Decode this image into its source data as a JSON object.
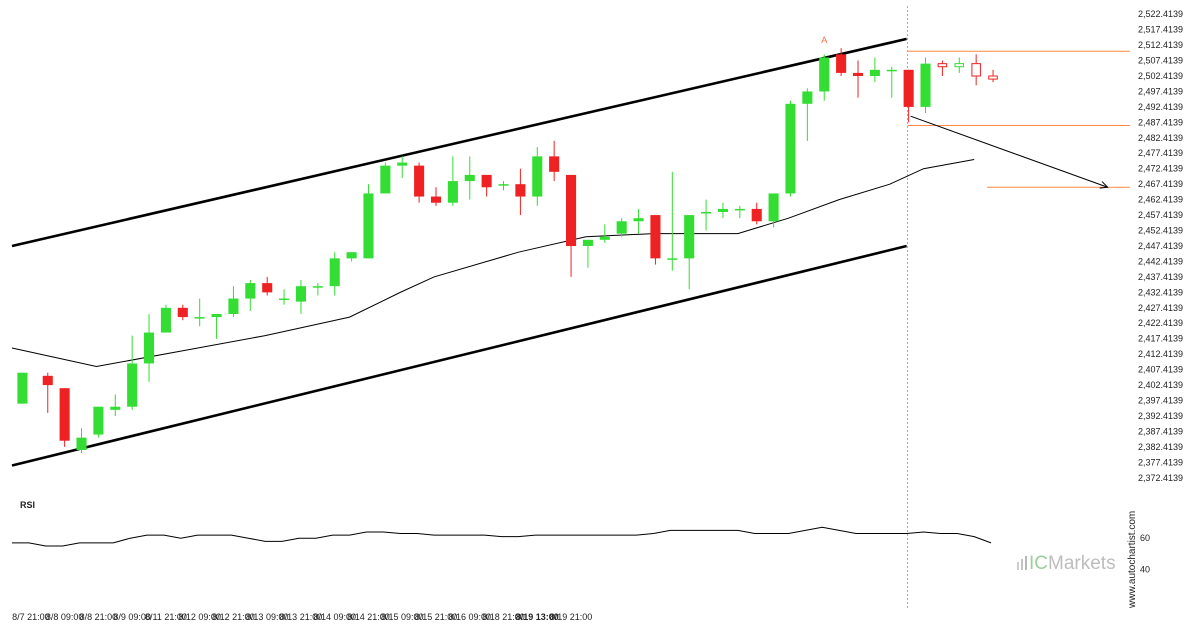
{
  "chart_data": [
    {
      "type": "candlestick",
      "y_ticks": [
        "2,522.4139",
        "2,517.4139",
        "2,512.4139",
        "2,507.4139",
        "2,502.4139",
        "2,497.4139",
        "2,492.4139",
        "2,487.4139",
        "2,482.4139",
        "2,477.4139",
        "2,472.4139",
        "2,467.4139",
        "2,462.4139",
        "2,457.4139",
        "2,452.4139",
        "2,447.4139",
        "2,442.4139",
        "2,437.4139",
        "2,432.4139",
        "2,427.4139",
        "2,422.4139",
        "2,417.4139",
        "2,412.4139",
        "2,407.4139",
        "2,402.4139",
        "2,397.4139",
        "2,392.4139",
        "2,387.4139",
        "2,382.4139",
        "2,377.4139",
        "2,372.4139"
      ],
      "ylim": [
        2370.4,
        2524.4
      ],
      "x_ticks": [
        "8/7 21:00",
        "8/8 09:00",
        "8/8 21:00",
        "8/9 09:00",
        "8/11 21:00",
        "8/12 09:00",
        "8/12 21:00",
        "8/13 09:00",
        "8/13 21:00",
        "8/14 09:00",
        "8/14 21:00",
        "8/15 09:00",
        "8/15 21:00",
        "8/16 09:00",
        "8/18 21:00",
        "8/19 13:00",
        "8/19 21:00"
      ],
      "x_tick_index": [
        2,
        6,
        10,
        14,
        18,
        22,
        26,
        30,
        34,
        38,
        42,
        46,
        50,
        54,
        58,
        62,
        66
      ],
      "highlighted_x_tick": "8/19 13:00",
      "candles": [
        {
          "o": 2396.4,
          "h": 2406.4,
          "l": 2396.4,
          "c": 2406.4
        },
        {
          "o": 2405.4,
          "h": 2406.4,
          "l": 2393.4,
          "c": 2402.4
        },
        {
          "o": 2401.4,
          "h": 2401.4,
          "l": 2382.4,
          "c": 2384.4
        },
        {
          "o": 2381.4,
          "h": 2388.4,
          "l": 2380.4,
          "c": 2385.4
        },
        {
          "o": 2386.4,
          "h": 2395.4,
          "l": 2385.4,
          "c": 2395.4
        },
        {
          "o": 2394.4,
          "h": 2399.4,
          "l": 2392.4,
          "c": 2395.4
        },
        {
          "o": 2395.4,
          "h": 2418.4,
          "l": 2394.4,
          "c": 2409.4
        },
        {
          "o": 2409.4,
          "h": 2425.4,
          "l": 2403.4,
          "c": 2419.4
        },
        {
          "o": 2419.4,
          "h": 2428.4,
          "l": 2419.4,
          "c": 2427.4
        },
        {
          "o": 2427.4,
          "h": 2428.4,
          "l": 2423.4,
          "c": 2424.4
        },
        {
          "o": 2424.4,
          "h": 2430.4,
          "l": 2421.4,
          "c": 2424.4
        },
        {
          "o": 2424.4,
          "h": 2425.4,
          "l": 2417.4,
          "c": 2425.4
        },
        {
          "o": 2425.4,
          "h": 2434.4,
          "l": 2424.4,
          "c": 2430.4
        },
        {
          "o": 2430.4,
          "h": 2436.4,
          "l": 2426.4,
          "c": 2435.4
        },
        {
          "o": 2435.4,
          "h": 2437.4,
          "l": 2431.4,
          "c": 2432.4
        },
        {
          "o": 2430.4,
          "h": 2433.4,
          "l": 2428.4,
          "c": 2430.4
        },
        {
          "o": 2429.4,
          "h": 2436.4,
          "l": 2425.4,
          "c": 2434.4
        },
        {
          "o": 2434.4,
          "h": 2435.4,
          "l": 2431.4,
          "c": 2434.4
        },
        {
          "o": 2434.4,
          "h": 2445.4,
          "l": 2431.4,
          "c": 2443.4
        },
        {
          "o": 2443.4,
          "h": 2445.4,
          "l": 2442.4,
          "c": 2445.4
        },
        {
          "o": 2443.4,
          "h": 2467.4,
          "l": 2443.4,
          "c": 2464.4
        },
        {
          "o": 2464.4,
          "h": 2474.4,
          "l": 2464.4,
          "c": 2473.4
        },
        {
          "o": 2473.4,
          "h": 2476.4,
          "l": 2469.4,
          "c": 2474.4
        },
        {
          "o": 2473.4,
          "h": 2474.4,
          "l": 2461.4,
          "c": 2463.4
        },
        {
          "o": 2463.4,
          "h": 2466.4,
          "l": 2460.4,
          "c": 2461.4
        },
        {
          "o": 2461.4,
          "h": 2476.4,
          "l": 2460.4,
          "c": 2468.4
        },
        {
          "o": 2468.4,
          "h": 2476.4,
          "l": 2462.4,
          "c": 2470.4
        },
        {
          "o": 2470.4,
          "h": 2470.4,
          "l": 2463.4,
          "c": 2466.4
        },
        {
          "o": 2467.4,
          "h": 2468.4,
          "l": 2465.4,
          "c": 2467.4
        },
        {
          "o": 2467.4,
          "h": 2472.4,
          "l": 2457.4,
          "c": 2463.4
        },
        {
          "o": 2463.4,
          "h": 2479.4,
          "l": 2460.4,
          "c": 2476.4
        },
        {
          "o": 2476.4,
          "h": 2481.4,
          "l": 2468.4,
          "c": 2471.4
        },
        {
          "o": 2470.4,
          "h": 2470.4,
          "l": 2437.4,
          "c": 2447.4
        },
        {
          "o": 2447.4,
          "h": 2449.4,
          "l": 2440.4,
          "c": 2449.4
        },
        {
          "o": 2449.4,
          "h": 2454.4,
          "l": 2448.4,
          "c": 2450.4
        },
        {
          "o": 2451.4,
          "h": 2456.4,
          "l": 2450.4,
          "c": 2455.4
        },
        {
          "o": 2455.4,
          "h": 2459.4,
          "l": 2451.4,
          "c": 2456.4
        },
        {
          "o": 2457.4,
          "h": 2457.4,
          "l": 2441.4,
          "c": 2443.4
        },
        {
          "o": 2443.4,
          "h": 2471.4,
          "l": 2439.4,
          "c": 2443.4
        },
        {
          "o": 2443.4,
          "h": 2457.4,
          "l": 2433.4,
          "c": 2457.4
        },
        {
          "o": 2458.4,
          "h": 2462.4,
          "l": 2452.4,
          "c": 2458.4
        },
        {
          "o": 2458.4,
          "h": 2461.4,
          "l": 2456.4,
          "c": 2459.4
        },
        {
          "o": 2459.4,
          "h": 2460.4,
          "l": 2456.4,
          "c": 2459.4
        },
        {
          "o": 2459.4,
          "h": 2461.4,
          "l": 2454.4,
          "c": 2455.4
        },
        {
          "o": 2455.4,
          "h": 2464.4,
          "l": 2453.4,
          "c": 2464.4
        },
        {
          "o": 2464.4,
          "h": 2494.4,
          "l": 2463.4,
          "c": 2493.4
        },
        {
          "o": 2493.4,
          "h": 2498.4,
          "l": 2481.4,
          "c": 2497.4
        },
        {
          "o": 2497.4,
          "h": 2509.4,
          "l": 2494.4,
          "c": 2508.4
        },
        {
          "o": 2509.4,
          "h": 2511.4,
          "l": 2502.4,
          "c": 2503.4
        },
        {
          "o": 2503.4,
          "h": 2507.4,
          "l": 2495.4,
          "c": 2502.4
        },
        {
          "o": 2502.4,
          "h": 2508.4,
          "l": 2500.4,
          "c": 2504.4
        },
        {
          "o": 2504.4,
          "h": 2505.4,
          "l": 2495.4,
          "c": 2504.4
        },
        {
          "o": 2504.4,
          "h": 2504.4,
          "l": 2487.4,
          "c": 2492.4
        },
        {
          "o": 2492.4,
          "h": 2508.4,
          "l": 2490.4,
          "c": 2506.4
        },
        {
          "o": 2506.4,
          "h": 2507.4,
          "l": 2502.4,
          "c": 2505.4
        },
        {
          "o": 2505.4,
          "h": 2508.4,
          "l": 2503.4,
          "c": 2506.4
        },
        {
          "o": 2506.4,
          "h": 2509.4,
          "l": 2499.4,
          "c": 2502.4
        },
        {
          "o": 2502.4,
          "h": 2504.4,
          "l": 2500.4,
          "c": 2501.4
        }
      ],
      "candle_x": [
        1,
        4,
        6,
        8,
        10,
        12,
        14,
        16,
        18,
        20,
        22,
        24,
        26,
        28,
        30,
        32,
        34,
        36,
        38,
        40,
        42,
        44,
        46,
        48,
        50,
        52,
        54,
        56,
        58,
        60,
        62,
        64,
        66,
        68,
        70,
        72,
        74,
        76,
        78,
        80,
        82,
        84,
        86,
        88,
        90,
        92,
        94,
        96,
        98,
        100,
        102,
        104,
        106,
        108,
        110,
        112,
        114,
        116
      ],
      "colors": {
        "bull": "#33dd33",
        "bear": "#ee2222",
        "projection_outline": "#33dd33",
        "projection_bear_outline": "#ee2222"
      },
      "projection_from_index": 53,
      "moving_average": [
        [
          0,
          2414.4
        ],
        [
          10,
          2408.4
        ],
        [
          20,
          2413.4
        ],
        [
          30,
          2418.4
        ],
        [
          40,
          2424.4
        ],
        [
          46,
          2432.4
        ],
        [
          50,
          2437.4
        ],
        [
          60,
          2445.4
        ],
        [
          68,
          2450.4
        ],
        [
          76,
          2451.4
        ],
        [
          86,
          2451.4
        ],
        [
          92,
          2456.4
        ],
        [
          98,
          2462.4
        ],
        [
          104,
          2467.4
        ],
        [
          108,
          2472.4
        ],
        [
          114,
          2475.4
        ]
      ],
      "channel": {
        "upper": [
          [
            0,
            2447.4
          ],
          [
            106,
            2514.4
          ]
        ],
        "lower": [
          [
            0,
            2376.4
          ],
          [
            106,
            2447.4
          ]
        ],
        "color": "#000000"
      },
      "pattern_end_index": 106,
      "levels": [
        {
          "y": 2510.4,
          "color": "#ff8844"
        },
        {
          "y": 2486.4,
          "color": "#ff8844"
        },
        {
          "y": 2466.4,
          "color": "#ff8844"
        }
      ],
      "arrow": {
        "from": [
          106,
          2489.4
        ],
        "to": [
          131,
          2466.4
        ],
        "color": "#000000"
      },
      "annotation_label": "A",
      "annotation_point": [
        96,
        2512.4
      ],
      "annotation_color": "#ff6a3d"
    },
    {
      "type": "line",
      "title": "RSI",
      "y_ticks": [
        "60",
        "40"
      ],
      "ylim": [
        30,
        80
      ],
      "values": [
        57,
        57,
        55,
        55,
        57,
        57,
        57,
        60,
        62,
        62,
        60,
        62,
        62,
        62,
        60,
        58,
        58,
        60,
        60,
        62,
        62,
        64,
        64,
        63,
        63,
        62,
        62,
        62,
        62,
        61,
        61,
        62,
        62,
        62,
        62,
        62,
        62,
        62,
        63,
        65,
        65,
        65,
        65,
        65,
        63,
        63,
        63,
        65,
        67,
        65,
        63,
        63,
        63,
        63,
        64,
        63,
        63,
        61,
        57
      ],
      "color": "#000000"
    }
  ],
  "watermark": {
    "brand_ic": "IC",
    "brand_rest": "Markets",
    "site": "www.autochartist.com"
  }
}
